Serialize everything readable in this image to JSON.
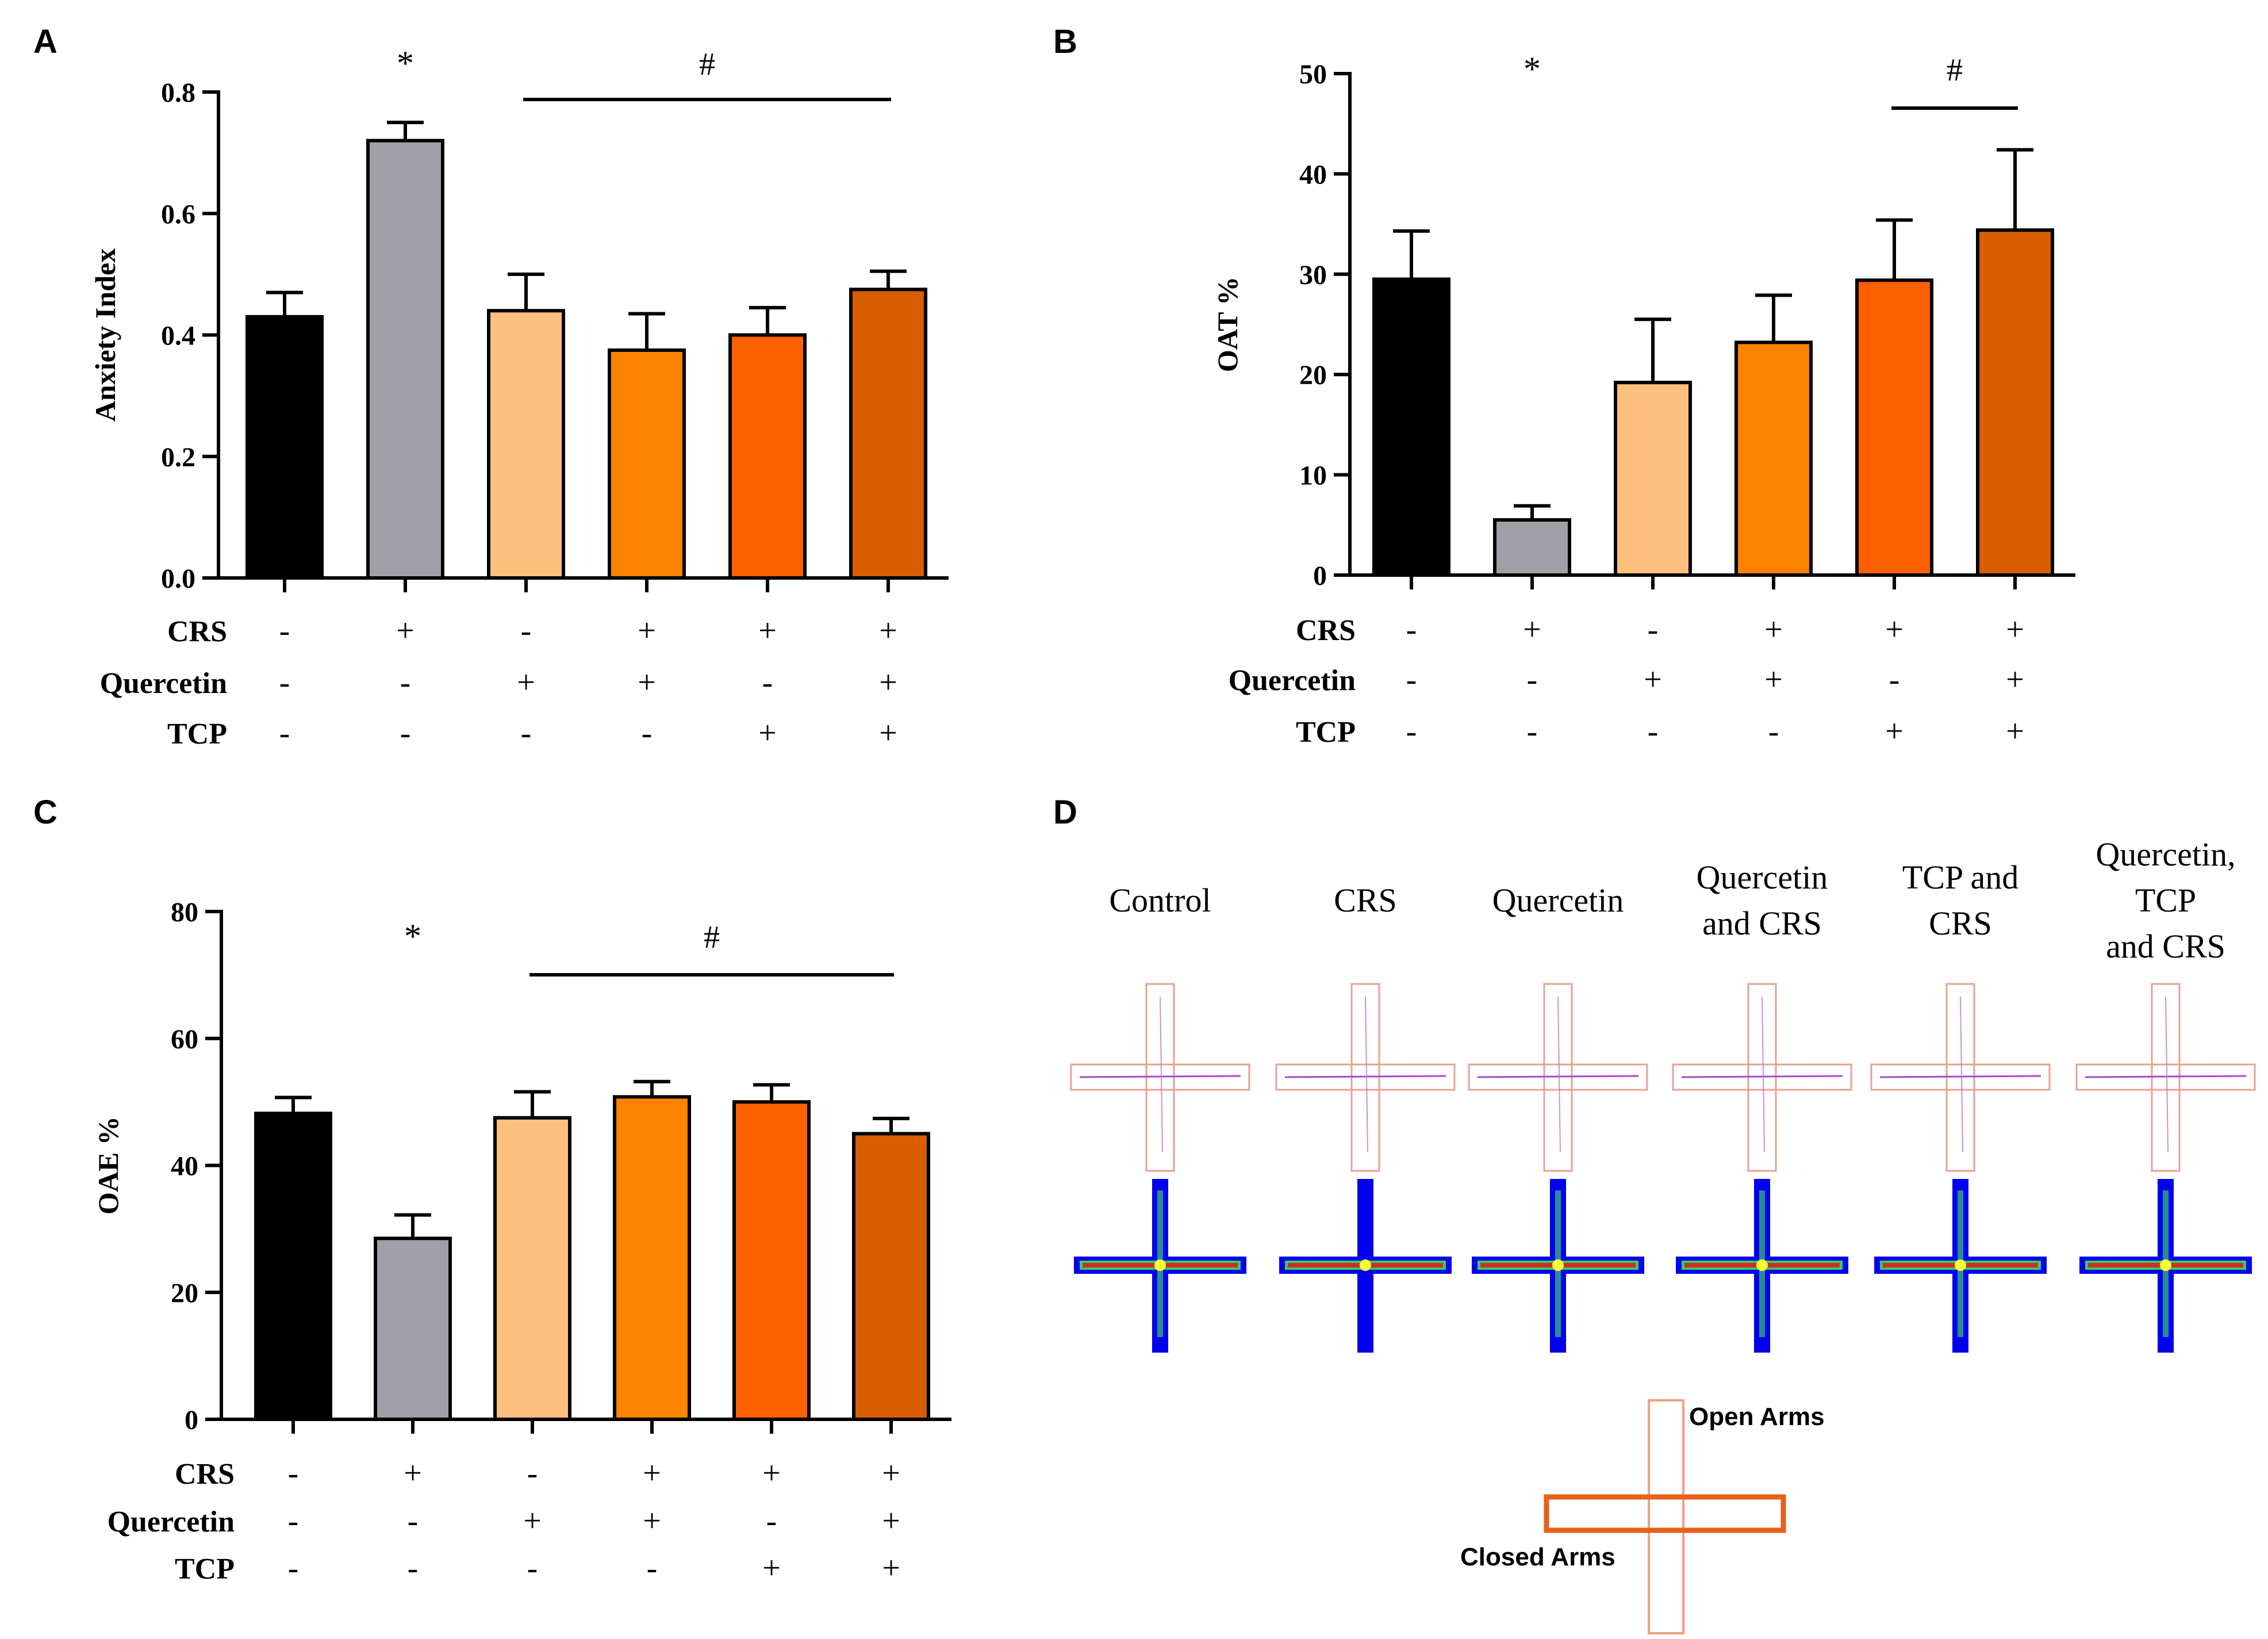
{
  "colors": {
    "bar": [
      "#000000",
      "#a0a0a6",
      "#fdbf7c",
      "#fd8200",
      "#fe6000",
      "#d85e00"
    ],
    "axis": "#000000",
    "track": "#e88a70",
    "heat_blue": "#0000ee",
    "heat_green": "#33cc66",
    "heat_red": "#ee1111",
    "legend_orange": "#e8601a"
  },
  "chart_data": [
    {
      "type": "bar",
      "panel_label": "A",
      "title": "",
      "ylabel": "Anxiety Index",
      "xlabel": "",
      "ylim": [
        0,
        0.8
      ],
      "yticks": [
        "0.0",
        "0.2",
        "0.4",
        "0.6",
        "0.8"
      ],
      "categories": [
        "Control",
        "CRS",
        "Quercetin",
        "Quercetin and CRS",
        "TCP and CRS",
        "Quercetin, TCP and CRS"
      ],
      "values": [
        0.43,
        0.72,
        0.44,
        0.375,
        0.4,
        0.475
      ],
      "errors": [
        0.04,
        0.03,
        0.06,
        0.06,
        0.045,
        0.03
      ],
      "star": {
        "text": "*",
        "over": 1
      },
      "hash": {
        "text": "#",
        "from": 2,
        "to": 5
      },
      "treatment_rows": [
        {
          "label": "CRS",
          "signs": [
            "-",
            "+",
            "-",
            "+",
            "+",
            "+"
          ]
        },
        {
          "label": "Quercetin",
          "signs": [
            "-",
            "-",
            "+",
            "+",
            "-",
            "+"
          ]
        },
        {
          "label": "TCP",
          "signs": [
            "-",
            "-",
            "-",
            "-",
            "+",
            "+"
          ]
        }
      ]
    },
    {
      "type": "bar",
      "panel_label": "B",
      "title": "",
      "ylabel": "OAT %",
      "xlabel": "",
      "ylim": [
        0,
        50
      ],
      "yticks": [
        "0",
        "10",
        "20",
        "30",
        "40",
        "50"
      ],
      "categories": [
        "Control",
        "CRS",
        "Quercetin",
        "Quercetin and CRS",
        "TCP and CRS",
        "Quercetin, TCP and CRS"
      ],
      "values": [
        29.5,
        5.5,
        19.2,
        23.2,
        29.4,
        34.4
      ],
      "errors": [
        4.8,
        1.4,
        6.3,
        4.7,
        6.0,
        8.0
      ],
      "star": {
        "text": "*",
        "over": 1
      },
      "hash": {
        "text": "#",
        "from": 4,
        "to": 5
      },
      "treatment_rows": [
        {
          "label": "CRS",
          "signs": [
            "-",
            "+",
            "-",
            "+",
            "+",
            "+"
          ]
        },
        {
          "label": "Quercetin",
          "signs": [
            "-",
            "-",
            "+",
            "+",
            "-",
            "+"
          ]
        },
        {
          "label": "TCP",
          "signs": [
            "-",
            "-",
            "-",
            "-",
            "+",
            "+"
          ]
        }
      ]
    },
    {
      "type": "bar",
      "panel_label": "C",
      "title": "",
      "ylabel": "OAE %",
      "xlabel": "",
      "ylim": [
        0,
        80
      ],
      "yticks": [
        "0",
        "20",
        "40",
        "60",
        "80"
      ],
      "categories": [
        "Control",
        "CRS",
        "Quercetin",
        "Quercetin and CRS",
        "TCP and CRS",
        "Quercetin, TCP and CRS"
      ],
      "values": [
        48.2,
        28.5,
        47.5,
        50.8,
        50.0,
        45.0
      ],
      "errors": [
        2.5,
        3.7,
        4.1,
        2.4,
        2.7,
        2.4
      ],
      "star": {
        "text": "*",
        "over": 1
      },
      "hash": {
        "text": "#",
        "from": 2,
        "to": 5
      },
      "treatment_rows": [
        {
          "label": "CRS",
          "signs": [
            "-",
            "+",
            "-",
            "+",
            "+",
            "+"
          ]
        },
        {
          "label": "Quercetin",
          "signs": [
            "-",
            "-",
            "+",
            "+",
            "-",
            "+"
          ]
        },
        {
          "label": "TCP",
          "signs": [
            "-",
            "-",
            "-",
            "-",
            "+",
            "+"
          ]
        }
      ]
    }
  ],
  "panel_d": {
    "label": "D",
    "groups": [
      [
        "Control"
      ],
      [
        "CRS"
      ],
      [
        "Quercetin"
      ],
      [
        "Quercetin",
        "and CRS"
      ],
      [
        "TCP and",
        "CRS"
      ],
      [
        "Quercetin,",
        "TCP",
        "and CRS"
      ]
    ],
    "legend": {
      "open": "Open Arms",
      "closed": "Closed Arms"
    }
  }
}
